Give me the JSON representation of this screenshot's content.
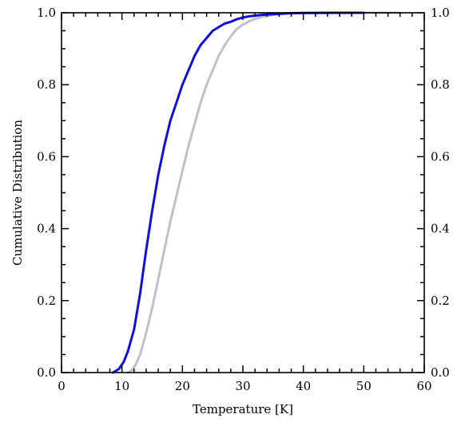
{
  "chart_data": {
    "type": "line",
    "title": "",
    "xlabel": "Temperature [K]",
    "ylabel": "Cumulative Distribution",
    "xlim": [
      0,
      60
    ],
    "ylim": [
      0,
      1
    ],
    "x_ticks": [
      0,
      10,
      20,
      30,
      40,
      50,
      60
    ],
    "x_tick_labels": [
      "0",
      "10",
      "20",
      "30",
      "40",
      "50",
      "60"
    ],
    "y_ticks": [
      0,
      0.2,
      0.4,
      0.6,
      0.8,
      1.0
    ],
    "y_tick_labels": [
      "0.0",
      "0.2",
      "0.4",
      "0.6",
      "0.8",
      "1.0"
    ],
    "right_y_tick_labels": [
      "0.0",
      "0.2",
      "0.4",
      "0.6",
      "0.8",
      "1.0"
    ],
    "x_minor_step": 2,
    "y_minor_step": 0.05,
    "grid": false,
    "legend": "none",
    "series": [
      {
        "color": "#c0c0c8",
        "x": [
          11,
          11.7,
          12.2,
          13,
          14,
          15,
          16,
          17,
          18,
          19,
          20,
          21,
          22,
          23,
          24,
          25,
          26,
          27,
          28,
          29,
          30,
          31,
          32,
          33,
          34,
          35,
          36,
          38,
          40,
          45,
          50,
          56
        ],
        "values": [
          0.0,
          0.007,
          0.02,
          0.05,
          0.11,
          0.18,
          0.26,
          0.34,
          0.42,
          0.49,
          0.56,
          0.63,
          0.69,
          0.75,
          0.8,
          0.84,
          0.88,
          0.91,
          0.935,
          0.955,
          0.967,
          0.976,
          0.983,
          0.988,
          0.991,
          0.994,
          0.996,
          0.998,
          0.999,
          0.9995,
          1.0,
          1.0
        ]
      },
      {
        "color": "#1010dd",
        "x": [
          8.5,
          9.5,
          10.3,
          11,
          12,
          13,
          14,
          15,
          16,
          17,
          18,
          19,
          20,
          21,
          22,
          23,
          24,
          25,
          26,
          27,
          28,
          29,
          30,
          31,
          32,
          33,
          34,
          35,
          36,
          37,
          38,
          40,
          45,
          50
        ],
        "values": [
          0.0,
          0.01,
          0.03,
          0.06,
          0.12,
          0.22,
          0.34,
          0.45,
          0.55,
          0.63,
          0.7,
          0.75,
          0.8,
          0.84,
          0.88,
          0.91,
          0.93,
          0.95,
          0.96,
          0.97,
          0.975,
          0.982,
          0.987,
          0.99,
          0.992,
          0.994,
          0.995,
          0.996,
          0.997,
          0.998,
          0.999,
          0.9995,
          1.0,
          1.0
        ]
      }
    ]
  }
}
